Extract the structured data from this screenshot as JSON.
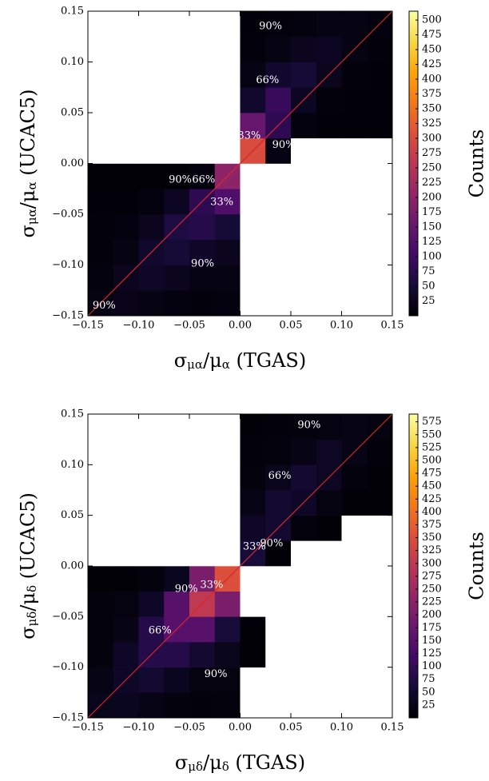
{
  "chart_data": [
    {
      "type": "heatmap",
      "xlabel": [
        "σ",
        "μα",
        "/μ",
        "α",
        " (TGAS)"
      ],
      "ylabel": [
        "σ",
        "μα",
        "/μ",
        "α",
        " (UCAC5)"
      ],
      "colorbar_label": "Counts",
      "colormap": "inferno",
      "diagonal_color": "#d62728",
      "xlim": [
        -0.15,
        0.15
      ],
      "ylim": [
        -0.15,
        0.15
      ],
      "xticks": [
        {
          "value": -0.15,
          "label": "−0.15"
        },
        {
          "value": -0.1,
          "label": "−0.10"
        },
        {
          "value": -0.05,
          "label": "−0.05"
        },
        {
          "value": 0,
          "label": "0.00"
        },
        {
          "value": 0.05,
          "label": "0.05"
        },
        {
          "value": 0.1,
          "label": "0.10"
        },
        {
          "value": 0.15,
          "label": "0.15"
        }
      ],
      "yticks": [
        {
          "value": -0.15,
          "label": "−0.15"
        },
        {
          "value": -0.1,
          "label": "−0.10"
        },
        {
          "value": -0.05,
          "label": "−0.05"
        },
        {
          "value": 0,
          "label": "0.00"
        },
        {
          "value": 0.05,
          "label": "0.05"
        },
        {
          "value": 0.1,
          "label": "0.10"
        },
        {
          "value": 0.15,
          "label": "0.15"
        }
      ],
      "clim": [
        0,
        515
      ],
      "cticks": [
        25,
        50,
        75,
        100,
        125,
        150,
        175,
        200,
        225,
        250,
        275,
        300,
        325,
        350,
        375,
        400,
        425,
        450,
        475,
        500
      ],
      "xbins": [
        -0.15,
        -0.125,
        -0.1,
        -0.075,
        -0.05,
        -0.025,
        0,
        0.025,
        0.05,
        0.075,
        0.1,
        0.125,
        0.15
      ],
      "ybins": [
        -0.15,
        -0.125,
        -0.1,
        -0.075,
        -0.05,
        -0.025,
        0,
        0.025,
        0.05,
        0.075,
        0.1,
        0.125,
        0.15
      ],
      "z": [
        [
          15,
          20,
          15,
          10,
          8,
          10,
          0,
          0,
          0,
          0,
          0,
          0
        ],
        [
          10,
          25,
          35,
          25,
          15,
          15,
          0,
          0,
          0,
          0,
          0,
          0
        ],
        [
          8,
          15,
          40,
          50,
          35,
          25,
          0,
          0,
          0,
          0,
          0,
          0
        ],
        [
          8,
          10,
          25,
          60,
          70,
          50,
          0,
          0,
          0,
          0,
          0,
          0
        ],
        [
          5,
          5,
          10,
          30,
          80,
          120,
          0,
          0,
          0,
          0,
          0,
          0
        ],
        [
          2,
          2,
          2,
          3,
          10,
          200,
          0,
          0,
          0,
          0,
          0,
          0
        ],
        [
          0,
          0,
          0,
          0,
          0,
          0,
          300,
          15,
          0,
          0,
          0,
          0
        ],
        [
          0,
          0,
          0,
          0,
          0,
          0,
          150,
          80,
          10,
          5,
          5,
          5
        ],
        [
          0,
          0,
          0,
          0,
          0,
          0,
          40,
          90,
          30,
          8,
          5,
          5
        ],
        [
          0,
          0,
          0,
          0,
          0,
          0,
          15,
          40,
          50,
          25,
          8,
          5
        ],
        [
          0,
          0,
          0,
          0,
          0,
          0,
          8,
          15,
          25,
          30,
          15,
          8
        ],
        [
          0,
          0,
          0,
          0,
          0,
          0,
          5,
          8,
          10,
          15,
          15,
          10
        ]
      ],
      "annotations": [
        {
          "text": "90%",
          "x": 0.03,
          "y": 0.135
        },
        {
          "text": "66%",
          "x": 0.027,
          "y": 0.082
        },
        {
          "text": "33%",
          "x": 0.009,
          "y": 0.027
        },
        {
          "text": "90%",
          "x": 0.043,
          "y": 0.018
        },
        {
          "text": "90%",
          "x": -0.059,
          "y": -0.016
        },
        {
          "text": "66%",
          "x": -0.036,
          "y": -0.016
        },
        {
          "text": "33%",
          "x": -0.018,
          "y": -0.038
        },
        {
          "text": "90%",
          "x": -0.037,
          "y": -0.099
        },
        {
          "text": "90%",
          "x": -0.134,
          "y": -0.14
        }
      ]
    },
    {
      "type": "heatmap",
      "xlabel": [
        "σ",
        "μδ",
        "/μ",
        "δ",
        " (TGAS)"
      ],
      "ylabel": [
        "σ",
        "μδ",
        "/μ",
        "δ",
        " (UCAC5)"
      ],
      "colorbar_label": "Counts",
      "colormap": "inferno",
      "diagonal_color": "#d62728",
      "xlim": [
        -0.15,
        0.15
      ],
      "ylim": [
        -0.15,
        0.15
      ],
      "xticks": [
        {
          "value": -0.15,
          "label": "−0.15"
        },
        {
          "value": -0.1,
          "label": "−0.10"
        },
        {
          "value": -0.05,
          "label": "−0.05"
        },
        {
          "value": 0,
          "label": "0.00"
        },
        {
          "value": 0.05,
          "label": "0.05"
        },
        {
          "value": 0.1,
          "label": "0.10"
        },
        {
          "value": 0.15,
          "label": "0.15"
        }
      ],
      "yticks": [
        {
          "value": -0.15,
          "label": "−0.15"
        },
        {
          "value": -0.1,
          "label": "−0.10"
        },
        {
          "value": -0.05,
          "label": "−0.05"
        },
        {
          "value": 0,
          "label": "0.00"
        },
        {
          "value": 0.05,
          "label": "0.05"
        },
        {
          "value": 0.1,
          "label": "0.10"
        },
        {
          "value": 0.15,
          "label": "0.15"
        }
      ],
      "clim": [
        0,
        590
      ],
      "cticks": [
        25,
        50,
        75,
        100,
        125,
        150,
        175,
        200,
        225,
        250,
        275,
        300,
        325,
        350,
        375,
        400,
        425,
        450,
        475,
        500,
        525,
        550,
        575
      ],
      "xbins": [
        -0.15,
        -0.125,
        -0.1,
        -0.075,
        -0.05,
        -0.025,
        0,
        0.025,
        0.05,
        0.075,
        0.1,
        0.125,
        0.15
      ],
      "ybins": [
        -0.15,
        -0.125,
        -0.1,
        -0.075,
        -0.05,
        -0.025,
        0,
        0.025,
        0.05,
        0.075,
        0.1,
        0.125,
        0.15
      ],
      "z": [
        [
          25,
          30,
          20,
          10,
          8,
          10,
          0,
          0,
          0,
          0,
          0,
          0
        ],
        [
          20,
          40,
          50,
          30,
          15,
          15,
          0,
          0,
          0,
          0,
          0,
          0
        ],
        [
          10,
          40,
          80,
          80,
          50,
          25,
          2,
          0,
          0,
          0,
          0,
          0
        ],
        [
          10,
          20,
          80,
          150,
          150,
          60,
          2,
          0,
          0,
          0,
          0,
          0
        ],
        [
          10,
          15,
          40,
          150,
          300,
          200,
          0,
          0,
          0,
          0,
          0,
          0
        ],
        [
          5,
          5,
          10,
          30,
          200,
          350,
          0,
          0,
          0,
          0,
          0,
          0
        ],
        [
          0,
          0,
          0,
          0,
          0,
          0,
          60,
          5,
          0,
          0,
          0,
          0
        ],
        [
          0,
          0,
          0,
          0,
          0,
          0,
          40,
          50,
          10,
          3,
          0,
          0
        ],
        [
          0,
          0,
          0,
          0,
          0,
          0,
          20,
          50,
          40,
          15,
          5,
          5
        ],
        [
          0,
          0,
          0,
          0,
          0,
          0,
          10,
          25,
          50,
          35,
          10,
          5
        ],
        [
          0,
          0,
          0,
          0,
          0,
          0,
          8,
          10,
          20,
          35,
          20,
          8
        ],
        [
          0,
          0,
          0,
          0,
          0,
          0,
          5,
          8,
          10,
          15,
          20,
          15
        ]
      ],
      "annotations": [
        {
          "text": "90%",
          "x": 0.068,
          "y": 0.139
        },
        {
          "text": "66%",
          "x": 0.039,
          "y": 0.089
        },
        {
          "text": "33%",
          "x": 0.014,
          "y": 0.019
        },
        {
          "text": "90%",
          "x": 0.031,
          "y": 0.022
        },
        {
          "text": "90%",
          "x": -0.053,
          "y": -0.023
        },
        {
          "text": "33%",
          "x": -0.028,
          "y": -0.019
        },
        {
          "text": "66%",
          "x": -0.079,
          "y": -0.064
        },
        {
          "text": "90%",
          "x": -0.024,
          "y": -0.107
        }
      ]
    }
  ]
}
